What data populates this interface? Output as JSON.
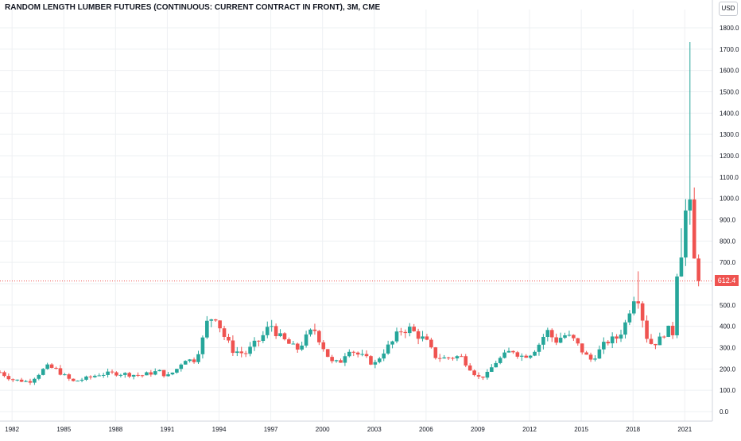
{
  "title": "RANDOM LENGTH LUMBER FUTURES (CONTINUOUS: CURRENT CONTRACT IN FRONT), 3M, CME",
  "currency": "USD",
  "last_price_label": "612.4",
  "colors": {
    "up": "#26a69a",
    "down": "#ef5350",
    "grid": "#eef0f3",
    "axis_text": "#131722",
    "background": "#ffffff"
  },
  "chart_data": {
    "type": "candlestick",
    "interval": "3M",
    "title": "RANDOM LENGTH LUMBER FUTURES (CONTINUOUS: CURRENT CONTRACT IN FRONT), 3M, CME",
    "ylim": [
      -50,
      1850
    ],
    "y_ticks": [
      0,
      100,
      200,
      300,
      400,
      500,
      600,
      700,
      800,
      900,
      1000,
      1100,
      1200,
      1300,
      1400,
      1500,
      1600,
      1700,
      1800
    ],
    "y_tick_labels": [
      "0.0",
      "100.0",
      "200.0",
      "300.0",
      "400.0",
      "500.0",
      "600.0",
      "700.0",
      "800.0",
      "900.0",
      "1000.0",
      "1100.0",
      "1200.0",
      "1300.0",
      "1400.0",
      "1500.0",
      "1600.0",
      "1700.0",
      "1800.0"
    ],
    "x_range": [
      1981.3,
      2022.6
    ],
    "x_ticks": [
      1982,
      1985,
      1988,
      1991,
      1994,
      1997,
      2000,
      2003,
      2006,
      2009,
      2012,
      2015,
      2018,
      2021
    ],
    "x_tick_labels": [
      "1982",
      "1985",
      "1988",
      "1991",
      "1994",
      "1997",
      "2000",
      "2003",
      "2006",
      "2009",
      "2012",
      "2015",
      "2018",
      "2021"
    ],
    "last_price": 612.4,
    "grid": true,
    "y_axis_side": "right",
    "anchors": [
      [
        1981.3,
        185
      ],
      [
        1982.0,
        150
      ],
      [
        1983.0,
        140
      ],
      [
        1984.0,
        210
      ],
      [
        1984.5,
        200
      ],
      [
        1985.5,
        140
      ],
      [
        1986.5,
        160
      ],
      [
        1987.0,
        175
      ],
      [
        1988.0,
        180
      ],
      [
        1989.5,
        170
      ],
      [
        1990.5,
        190
      ],
      [
        1991.0,
        165
      ],
      [
        1991.5,
        195
      ],
      [
        1992.0,
        250
      ],
      [
        1992.5,
        235
      ],
      [
        1993.0,
        320
      ],
      [
        1993.25,
        410
      ],
      [
        1993.75,
        460
      ],
      [
        1994.25,
        360
      ],
      [
        1994.75,
        290
      ],
      [
        1995.5,
        270
      ],
      [
        1996.0,
        310
      ],
      [
        1996.5,
        350
      ],
      [
        1997.0,
        410
      ],
      [
        1997.5,
        350
      ],
      [
        1998.5,
        290
      ],
      [
        1999.0,
        340
      ],
      [
        1999.5,
        390
      ],
      [
        2000.0,
        310
      ],
      [
        2000.5,
        230
      ],
      [
        2001.0,
        230
      ],
      [
        2001.5,
        300
      ],
      [
        2002.0,
        270
      ],
      [
        2002.5,
        250
      ],
      [
        2003.0,
        220
      ],
      [
        2003.5,
        280
      ],
      [
        2004.0,
        320
      ],
      [
        2004.5,
        380
      ],
      [
        2005.0,
        390
      ],
      [
        2005.5,
        360
      ],
      [
        2006.0,
        330
      ],
      [
        2006.5,
        260
      ],
      [
        2007.0,
        250
      ],
      [
        2008.0,
        260
      ],
      [
        2008.5,
        210
      ],
      [
        2009.0,
        160
      ],
      [
        2009.5,
        170
      ],
      [
        2010.0,
        230
      ],
      [
        2010.5,
        260
      ],
      [
        2011.0,
        290
      ],
      [
        2011.5,
        260
      ],
      [
        2012.0,
        270
      ],
      [
        2012.5,
        310
      ],
      [
        2013.0,
        380
      ],
      [
        2013.5,
        330
      ],
      [
        2014.0,
        360
      ],
      [
        2014.5,
        340
      ],
      [
        2015.0,
        290
      ],
      [
        2015.5,
        240
      ],
      [
        2016.0,
        280
      ],
      [
        2016.5,
        330
      ],
      [
        2017.0,
        340
      ],
      [
        2017.5,
        400
      ],
      [
        2018.0,
        540
      ],
      [
        2018.25,
        560
      ],
      [
        2018.75,
        360
      ],
      [
        2019.0,
        320
      ],
      [
        2019.5,
        330
      ],
      [
        2020.0,
        400
      ],
      [
        2020.25,
        300
      ],
      [
        2020.5,
        650
      ],
      [
        2020.75,
        720
      ],
      [
        2021.0,
        920
      ],
      [
        2021.25,
        1000
      ],
      [
        2021.5,
        720
      ],
      [
        2021.75,
        640
      ],
      [
        2021.9,
        612.4
      ]
    ],
    "notable_highs": [
      {
        "x": 2021.25,
        "high": 1733
      },
      {
        "x": 2020.75,
        "high": 860
      },
      {
        "x": 2018.25,
        "high": 658
      }
    ]
  }
}
